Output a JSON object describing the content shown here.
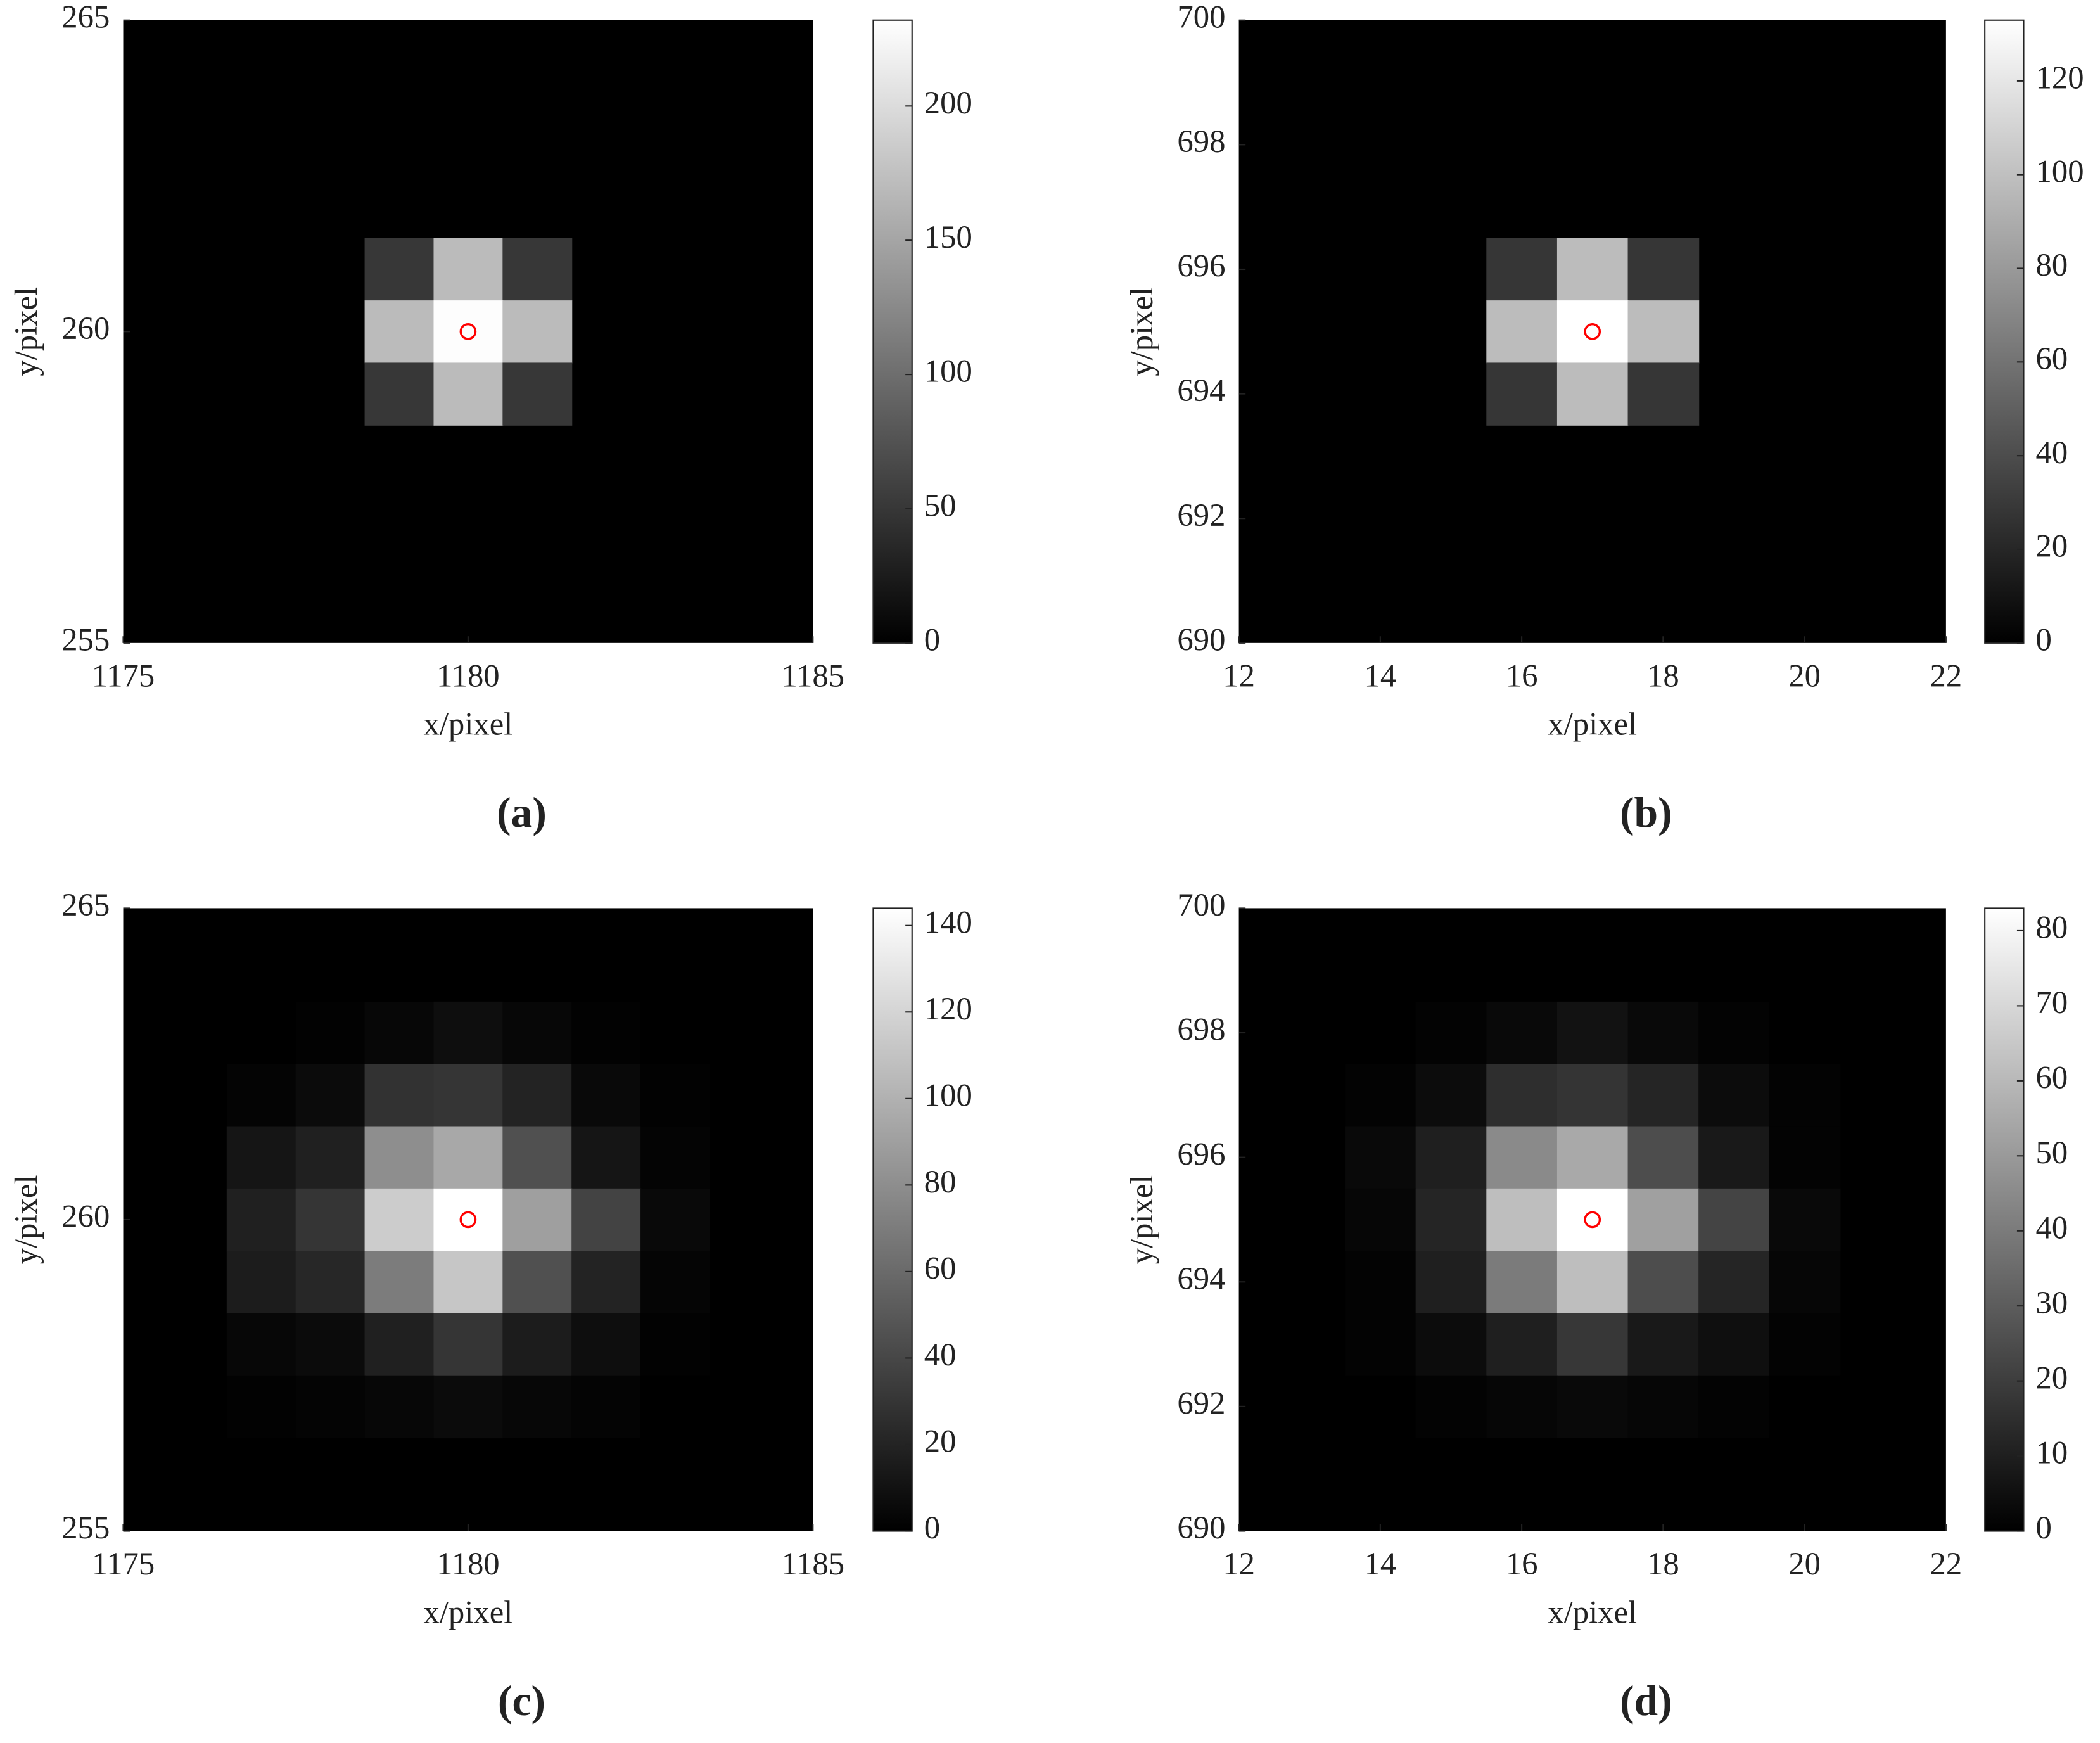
{
  "chart_data": [
    {
      "type": "heatmap",
      "caption": "(a)",
      "xlabel": "x/pixel",
      "ylabel": "y/pixel",
      "x": [
        1179,
        1180,
        1181
      ],
      "y": [
        261,
        260,
        259
      ],
      "values": [
        [
          50,
          170,
          50
        ],
        [
          170,
          230,
          170
        ],
        [
          50,
          170,
          50
        ]
      ],
      "xlim": [
        1175,
        1185
      ],
      "xticks": [
        1175,
        1180,
        1185
      ],
      "ylim": [
        255,
        265
      ],
      "yticks": [
        255,
        260,
        265
      ],
      "clim": [
        0,
        232
      ],
      "cticks": [
        0,
        50,
        100,
        150,
        200
      ],
      "colormap": "gray",
      "marker": {
        "x": 1180,
        "y": 260,
        "color": "#ff0000"
      }
    },
    {
      "type": "heatmap",
      "caption": "(b)",
      "xlabel": "x/pixel",
      "ylabel": "y/pixel",
      "x": [
        16,
        17,
        18
      ],
      "y": [
        696,
        695,
        694
      ],
      "values": [
        [
          28,
          98,
          28
        ],
        [
          98,
          133,
          98
        ],
        [
          28,
          98,
          28
        ]
      ],
      "xlim": [
        12,
        22
      ],
      "xticks": [
        12,
        14,
        16,
        18,
        20,
        22
      ],
      "ylim": [
        690,
        700
      ],
      "yticks": [
        690,
        692,
        694,
        696,
        698,
        700
      ],
      "clim": [
        0,
        133
      ],
      "cticks": [
        0,
        20,
        40,
        60,
        80,
        100,
        120
      ],
      "colormap": "gray",
      "marker": {
        "x": 17,
        "y": 695,
        "color": "#ff0000"
      }
    },
    {
      "type": "heatmap",
      "caption": "(c)",
      "xlabel": "x/pixel",
      "ylabel": "y/pixel",
      "x": [
        1177,
        1178,
        1179,
        1180,
        1181,
        1182,
        1183
      ],
      "y": [
        263,
        262,
        261,
        260,
        259,
        258,
        257
      ],
      "values": [
        [
          0,
          1,
          4,
          8,
          4,
          1,
          0
        ],
        [
          2,
          6,
          28,
          30,
          20,
          5,
          1
        ],
        [
          12,
          18,
          80,
          95,
          45,
          12,
          2
        ],
        [
          18,
          30,
          115,
          144,
          90,
          38,
          5
        ],
        [
          16,
          22,
          70,
          112,
          45,
          20,
          3
        ],
        [
          4,
          6,
          18,
          30,
          16,
          8,
          1
        ],
        [
          1,
          2,
          4,
          6,
          4,
          2,
          0
        ]
      ],
      "xlim": [
        1175,
        1185
      ],
      "xticks": [
        1175,
        1180,
        1185
      ],
      "ylim": [
        255,
        265
      ],
      "yticks": [
        255,
        260,
        265
      ],
      "clim": [
        0,
        144
      ],
      "cticks": [
        0,
        20,
        40,
        60,
        80,
        100,
        120,
        140
      ],
      "colormap": "gray",
      "marker": {
        "x": 1180,
        "y": 260,
        "color": "#ff0000"
      }
    },
    {
      "type": "heatmap",
      "caption": "(d)",
      "xlabel": "x/pixel",
      "ylabel": "y/pixel",
      "x": [
        14,
        15,
        16,
        17,
        18,
        19,
        20
      ],
      "y": [
        698,
        697,
        696,
        695,
        694,
        693,
        692
      ],
      "values": [
        [
          0,
          1,
          3,
          6,
          3,
          1,
          0
        ],
        [
          1,
          4,
          15,
          17,
          12,
          4,
          1
        ],
        [
          3,
          10,
          45,
          55,
          25,
          8,
          1
        ],
        [
          2,
          12,
          62,
          83,
          52,
          22,
          3
        ],
        [
          1,
          10,
          40,
          62,
          25,
          12,
          2
        ],
        [
          1,
          4,
          10,
          18,
          8,
          5,
          1
        ],
        [
          0,
          1,
          2,
          3,
          2,
          1,
          0
        ]
      ],
      "xlim": [
        12,
        22
      ],
      "xticks": [
        12,
        14,
        16,
        18,
        20,
        22
      ],
      "ylim": [
        690,
        700
      ],
      "yticks": [
        690,
        692,
        694,
        696,
        698,
        700
      ],
      "clim": [
        0,
        83
      ],
      "cticks": [
        0,
        10,
        20,
        30,
        40,
        50,
        60,
        70,
        80
      ],
      "colormap": "gray",
      "marker": {
        "x": 17,
        "y": 695,
        "color": "#ff0000"
      }
    }
  ]
}
